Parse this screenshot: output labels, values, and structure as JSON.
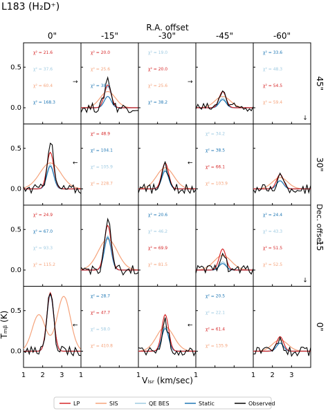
{
  "title": "L183 (H₂D⁺)",
  "top_axis_label": "R.A. offset",
  "right_axis_label": "Dec. offset",
  "xlabel": "Vₗₛᵣ (km/sec)",
  "ylabel": "Tₘᵦ (K)",
  "col_labels": [
    "0\"",
    "-15\"",
    "-30\"",
    "-45\"",
    "-60\""
  ],
  "row_labels": [
    "45\"",
    "30\"",
    "15",
    "0\""
  ],
  "xticks": [
    "1",
    "2",
    "3",
    "1",
    "1",
    "1",
    "1",
    "2",
    "3"
  ],
  "yticks": [
    "0.0",
    "0.5"
  ],
  "colors": {
    "LP": "#d62728",
    "SIS": "#f5a27a",
    "QE BES": "#9ecae1",
    "Static": "#1f77b4",
    "Observed": "#000000"
  },
  "legend": [
    "LP",
    "SIS",
    "QE BES",
    "Static",
    "Observed"
  ],
  "chart_data": {
    "type": "line",
    "xlim": [
      1,
      4
    ],
    "ylim": [
      -0.2,
      0.8
    ],
    "grid": false,
    "legend_placement": "bottom",
    "panels": [
      {
        "row": 0,
        "col": 0,
        "empty": true,
        "chi2": [
          {
            "model": "LP",
            "text": "χ² = 21.6"
          },
          {
            "model": "QE BES",
            "text": "χ² = 37.6"
          },
          {
            "model": "SIS",
            "text": "χ² = 60.4"
          },
          {
            "model": "Static",
            "text": "χ² = 168.3"
          }
        ]
      },
      {
        "row": 0,
        "col": 1,
        "arrow_left": "→",
        "peaks": {
          "LP": 0.28,
          "SIS": 0.2,
          "QE BES": 0.26,
          "Static": 0.14,
          "Observed": 0.36
        },
        "sis_width": 0.4,
        "chi2": [
          {
            "model": "LP",
            "text": "χ² = 20.0"
          },
          {
            "model": "SIS",
            "text": "χ² = 25.6"
          },
          {
            "model": "Static",
            "text": "χ² = 38.2"
          }
        ]
      },
      {
        "row": 0,
        "col": 2,
        "empty": true,
        "chi2": [
          {
            "model": "QE BES",
            "text": "χ² = 19.0"
          },
          {
            "model": "LP",
            "text": "χ² = 20.0"
          },
          {
            "model": "SIS",
            "text": "χ² = 25.6"
          },
          {
            "model": "Static",
            "text": "χ² = 38.2"
          }
        ]
      },
      {
        "row": 0,
        "col": 3,
        "arrow_left": "→",
        "peaks": {
          "LP": 0.2,
          "SIS": 0.14,
          "QE BES": 0.12,
          "Static": 0.1,
          "Observed": 0.22
        },
        "sis_width": 0.4,
        "chi2": []
      },
      {
        "row": 0,
        "col": 4,
        "arrow_bottom": "↓",
        "chi2": [
          {
            "model": "Static",
            "text": "χ² = 33.6"
          },
          {
            "model": "QE BES",
            "text": "χ² = 48.3"
          },
          {
            "model": "LP",
            "text": "χ² = 54.5"
          },
          {
            "model": "SIS",
            "text": "χ² = 59.4"
          }
        ]
      },
      {
        "row": 1,
        "col": 0,
        "peaks": {
          "LP": 0.45,
          "SIS": 0.32,
          "QE BES": 0.3,
          "Static": 0.28,
          "Observed": 0.6
        },
        "sis_width": 0.55,
        "chi2": []
      },
      {
        "row": 1,
        "col": 1,
        "arrow_left": "←",
        "empty": true,
        "chi2": [
          {
            "model": "LP",
            "text": "χ² = 48.9"
          },
          {
            "model": "Static",
            "text": "χ² = 104.1"
          },
          {
            "model": "QE BES",
            "text": "χ² = 105.9"
          },
          {
            "model": "SIS",
            "text": "χ² = 228.7"
          }
        ]
      },
      {
        "row": 1,
        "col": 2,
        "peaks": {
          "LP": 0.32,
          "SIS": 0.26,
          "QE BES": 0.24,
          "Static": 0.22,
          "Observed": 0.28
        },
        "sis_width": 0.45,
        "chi2": []
      },
      {
        "row": 1,
        "col": 3,
        "arrow_left": "←",
        "empty": true,
        "chi2": [
          {
            "model": "QE BES",
            "text": "χ² = 34.2"
          },
          {
            "model": "Static",
            "text": "χ² = 38.5"
          },
          {
            "model": "LP",
            "text": "χ² = 66.1"
          },
          {
            "model": "SIS",
            "text": "χ² = 103.9"
          }
        ]
      },
      {
        "row": 1,
        "col": 4,
        "peaks": {
          "LP": 0.18,
          "SIS": 0.14,
          "QE BES": 0.1,
          "Static": 0.1,
          "Observed": 0.16
        },
        "sis_width": 0.4,
        "chi2": []
      },
      {
        "row": 2,
        "col": 0,
        "empty": true,
        "chi2": [
          {
            "model": "LP",
            "text": "χ² = 24.9"
          },
          {
            "model": "Static",
            "text": "χ² = 67.0"
          },
          {
            "model": "QE BES",
            "text": "χ² = 93.3"
          },
          {
            "model": "SIS",
            "text": "χ² = 115.2"
          }
        ]
      },
      {
        "row": 2,
        "col": 1,
        "peaks": {
          "LP": 0.55,
          "SIS": 0.38,
          "QE BES": 0.42,
          "Static": 0.4,
          "Observed": 0.62
        },
        "sis_width": 0.5,
        "chi2": []
      },
      {
        "row": 2,
        "col": 2,
        "empty": true,
        "chi2": [
          {
            "model": "Static",
            "text": "χ² = 20.6"
          },
          {
            "model": "QE BES",
            "text": "χ² = 46.2"
          },
          {
            "model": "LP",
            "text": "χ² = 69.9"
          },
          {
            "model": "SIS",
            "text": "χ² = 81.5"
          }
        ]
      },
      {
        "row": 2,
        "col": 3,
        "peaks": {
          "LP": 0.26,
          "SIS": 0.18,
          "QE BES": 0.1,
          "Static": 0.08,
          "Observed": 0.22
        },
        "sis_width": 0.45,
        "chi2": []
      },
      {
        "row": 2,
        "col": 4,
        "arrow_bottom": "↓",
        "empty": true,
        "chi2": [
          {
            "model": "Static",
            "text": "χ² = 24.4"
          },
          {
            "model": "QE BES",
            "text": "χ² = 43.3"
          },
          {
            "model": "LP",
            "text": "χ² = 51.5"
          },
          {
            "model": "SIS",
            "text": "χ² = 52.5"
          }
        ]
      },
      {
        "row": 3,
        "col": 0,
        "peaks": {
          "LP": 0.72,
          "SIS": 0.45,
          "QE BES": 0.7,
          "Static": 0.7,
          "Observed": 0.75
        },
        "sis_width": 0.5,
        "sis_double": true,
        "chi2": []
      },
      {
        "row": 3,
        "col": 1,
        "arrow_left": "←",
        "empty": true,
        "chi2": [
          {
            "model": "Static",
            "text": "χ² = 28.7"
          },
          {
            "model": "LP",
            "text": "χ² = 47.7"
          },
          {
            "model": "QE BES",
            "text": "χ² = 58.0"
          },
          {
            "model": "SIS",
            "text": "χ² = 410.8"
          }
        ]
      },
      {
        "row": 3,
        "col": 2,
        "peaks": {
          "LP": 0.45,
          "SIS": 0.3,
          "QE BES": 0.3,
          "Static": 0.28,
          "Observed": 0.36
        },
        "sis_width": 0.45,
        "chi2": []
      },
      {
        "row": 3,
        "col": 3,
        "arrow_left": "←",
        "empty": true,
        "chi2": [
          {
            "model": "Static",
            "text": "χ² = 20.5"
          },
          {
            "model": "QE BES",
            "text": "χ² = 22.1"
          },
          {
            "model": "LP",
            "text": "χ² = 61.4"
          },
          {
            "model": "SIS",
            "text": "χ² = 135.9"
          }
        ]
      },
      {
        "row": 3,
        "col": 4,
        "peaks": {
          "LP": 0.18,
          "SIS": 0.14,
          "QE BES": 0.1,
          "Static": 0.1,
          "Observed": 0.14
        },
        "sis_width": 0.4,
        "chi2": []
      }
    ]
  }
}
